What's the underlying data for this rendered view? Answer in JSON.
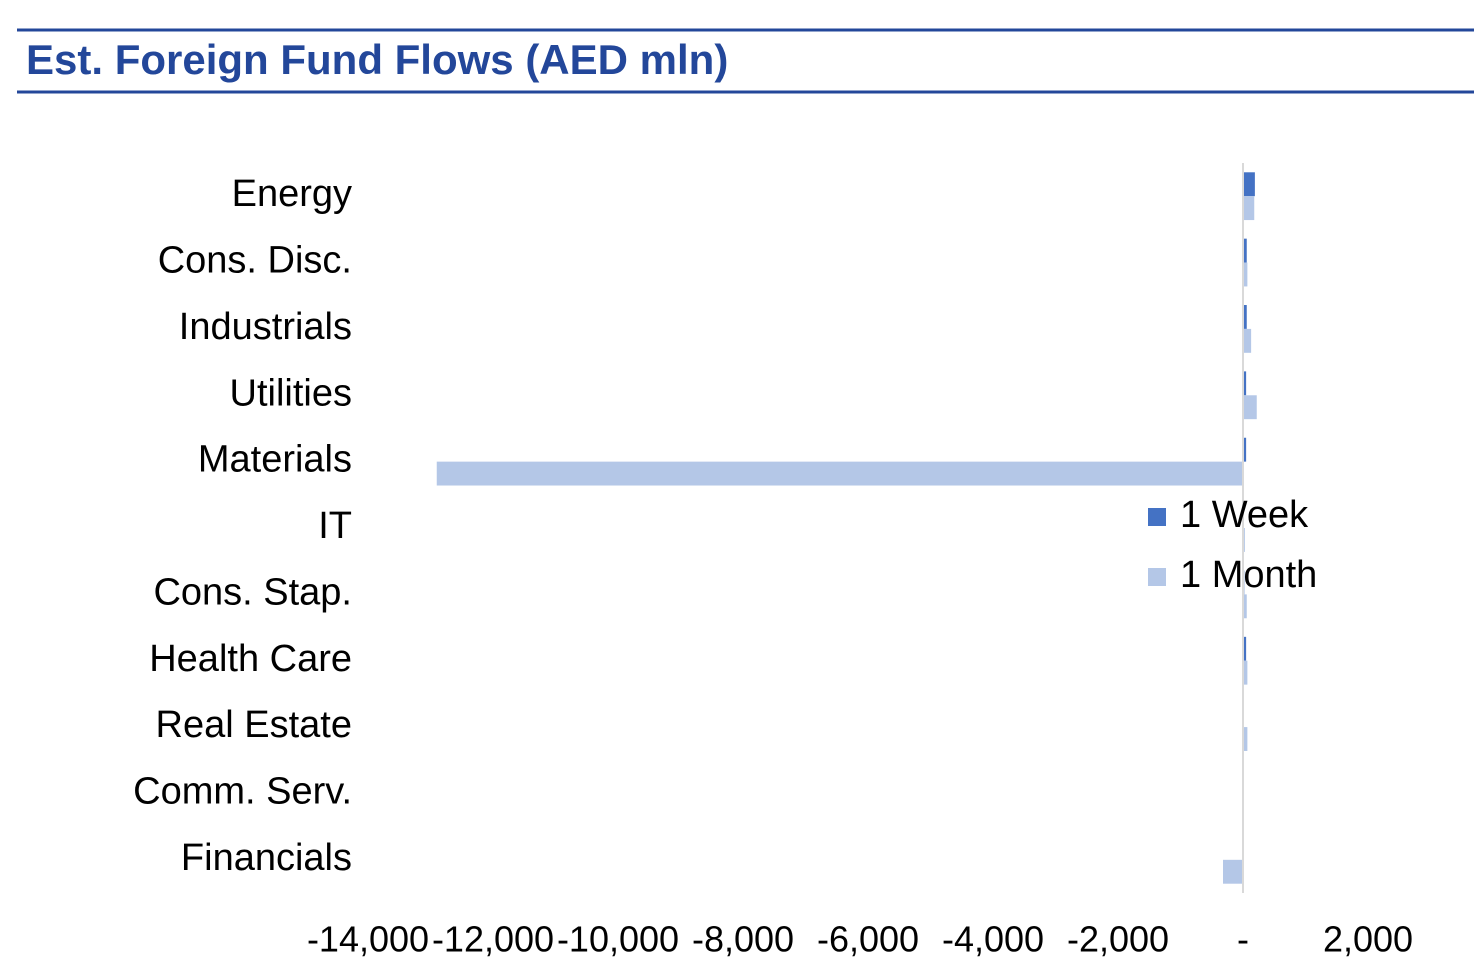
{
  "chart_data": {
    "type": "hbar",
    "title": "Est. Foreign Fund Flows (AED mln)",
    "categories": [
      "Energy",
      "Cons. Disc.",
      "Industrials",
      "Utilities",
      "Materials",
      "IT",
      "Cons. Stap.",
      "Health Care",
      "Real Estate",
      "Comm. Serv.",
      "Financials"
    ],
    "series": [
      {
        "name": "1 Week",
        "color": "#4472c4",
        "values": [
          190,
          60,
          60,
          50,
          50,
          10,
          20,
          50,
          0,
          10,
          0
        ]
      },
      {
        "name": "1 Month",
        "color": "#b4c7e7",
        "values": [
          180,
          70,
          130,
          220,
          -12900,
          30,
          60,
          70,
          70,
          10,
          -320
        ]
      }
    ],
    "xlim": [
      -14000,
      2000
    ],
    "xticks": [
      {
        "value": -14000,
        "label": "-14,000"
      },
      {
        "value": -12000,
        "label": "-12,000"
      },
      {
        "value": -10000,
        "label": "-10,000"
      },
      {
        "value": -8000,
        "label": "-8,000"
      },
      {
        "value": -6000,
        "label": "-6,000"
      },
      {
        "value": -4000,
        "label": "-4,000"
      },
      {
        "value": -2000,
        "label": "-2,000"
      },
      {
        "value": 0,
        "label": "-"
      },
      {
        "value": 2000,
        "label": "2,000"
      }
    ],
    "grid": false,
    "legend": "right"
  }
}
